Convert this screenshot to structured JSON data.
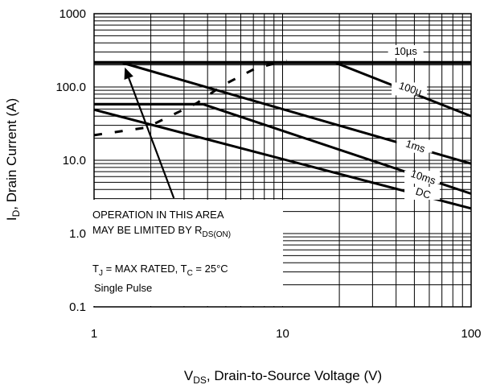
{
  "chart_data": {
    "type": "line",
    "x_scale": "log",
    "y_scale": "log",
    "xlim": [
      1,
      100
    ],
    "ylim": [
      0.1,
      1000
    ],
    "x_ticks": [
      "1",
      "10",
      "100"
    ],
    "y_ticks": [
      "0.1",
      "1.0",
      "10.0",
      "100.0",
      "1000"
    ],
    "xlabel": {
      "base": "V",
      "sub": "DS",
      "rest": ", Drain-to-Source Voltage (V)"
    },
    "ylabel": {
      "base": "I",
      "sub": "D",
      "rest": ", Drain Current (A)"
    },
    "grid": true,
    "package_limit": {
      "y": 215
    },
    "rds_limit": {
      "x": [
        1,
        1.9,
        3.5,
        4.8,
        7.2,
        10.5
      ],
      "y": [
        22,
        28,
        60,
        105,
        180,
        230
      ]
    },
    "series": [
      {
        "name": "10µs",
        "x": [
          1,
          100
        ],
        "y": [
          215,
          215
        ],
        "label_x": 45,
        "label_y": 275
      },
      {
        "name": "100µ",
        "x": [
          19,
          100
        ],
        "y": [
          215,
          40
        ],
        "label_x": 47,
        "label_y": 85
      },
      {
        "name": "1ms",
        "x": [
          1.4,
          100
        ],
        "y": [
          215,
          9
        ],
        "label_x": 50,
        "label_y": 14
      },
      {
        "name": "10ms",
        "x": [
          3.8,
          100
        ],
        "y": [
          58,
          3.5
        ],
        "label_x": 55,
        "label_y": 5.3
      },
      {
        "name": "DC",
        "x": [
          1,
          100
        ],
        "y": [
          49,
          2.2
        ],
        "label_x": 55,
        "label_y": 3.2
      }
    ],
    "annotations": [
      {
        "line1": "OPERATION IN THIS AREA",
        "line2_base": "MAY BE LIMITED BY R",
        "line2_sub": "DS(ON)"
      },
      {
        "tj_base": "T",
        "tj_sub": "J",
        "tj_rest": " = MAX RATED,  T",
        "tc_sub": "C",
        "tc_rest": " = 25°C",
        "pulse": "Single Pulse"
      }
    ]
  }
}
